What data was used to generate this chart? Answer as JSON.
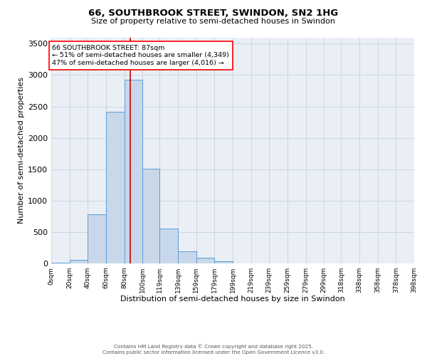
{
  "title_line1": "66, SOUTHBROOK STREET, SWINDON, SN2 1HG",
  "title_line2": "Size of property relative to semi-detached houses in Swindon",
  "xlabel": "Distribution of semi-detached houses by size in Swindon",
  "ylabel": "Number of semi-detached properties",
  "bar_left_edges": [
    0,
    20,
    40,
    60,
    80,
    100,
    119,
    139,
    159,
    179,
    199,
    219,
    239,
    259,
    279,
    299,
    318,
    338,
    358,
    378
  ],
  "bar_widths": [
    20,
    20,
    20,
    20,
    20,
    19,
    20,
    20,
    20,
    20,
    20,
    20,
    20,
    20,
    20,
    19,
    20,
    20,
    20,
    20
  ],
  "bar_heights": [
    10,
    60,
    780,
    2420,
    2920,
    1510,
    550,
    190,
    90,
    30,
    5,
    5,
    5,
    2,
    2,
    2,
    1,
    1,
    1,
    1
  ],
  "tick_labels": [
    "0sqm",
    "20sqm",
    "40sqm",
    "60sqm",
    "80sqm",
    "100sqm",
    "119sqm",
    "139sqm",
    "159sqm",
    "179sqm",
    "199sqm",
    "219sqm",
    "239sqm",
    "259sqm",
    "279sqm",
    "299sqm",
    "318sqm",
    "338sqm",
    "358sqm",
    "378sqm",
    "398sqm"
  ],
  "tick_positions": [
    0,
    20,
    40,
    60,
    80,
    100,
    119,
    139,
    159,
    179,
    199,
    219,
    239,
    259,
    279,
    299,
    318,
    338,
    358,
    378,
    398
  ],
  "bar_facecolor": "#c8d8ea",
  "bar_edgecolor": "#5b9bd5",
  "grid_color": "#c8d0dc",
  "bg_color": "#eaeff6",
  "vline_x": 87,
  "vline_color": "#cc0000",
  "ylim": [
    0,
    3600
  ],
  "yticks": [
    0,
    500,
    1000,
    1500,
    2000,
    2500,
    3000,
    3500
  ],
  "annotation_text": "66 SOUTHBROOK STREET: 87sqm\n← 51% of semi-detached houses are smaller (4,349)\n47% of semi-detached houses are larger (4,016) →",
  "footer_line1": "Contains HM Land Registry data © Crown copyright and database right 2025.",
  "footer_line2": "Contains public sector information licensed under the Open Government Licence v3.0."
}
